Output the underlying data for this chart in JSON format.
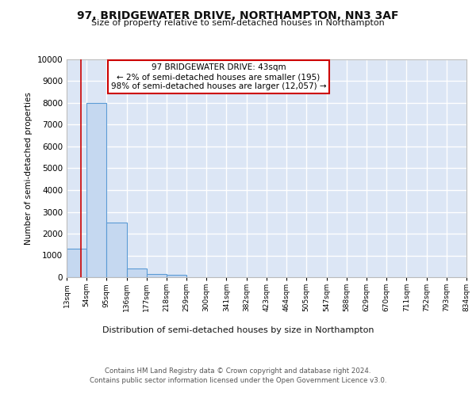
{
  "title": "97, BRIDGEWATER DRIVE, NORTHAMPTON, NN3 3AF",
  "subtitle": "Size of property relative to semi-detached houses in Northampton",
  "xlabel": "Distribution of semi-detached houses by size in Northampton",
  "ylabel": "Number of semi-detached properties",
  "bin_edges": [
    13,
    54,
    95,
    136,
    177,
    218,
    259,
    300,
    341,
    382,
    423,
    464,
    505,
    547,
    588,
    629,
    670,
    711,
    752,
    793,
    834
  ],
  "bar_heights": [
    1300,
    8000,
    2500,
    400,
    150,
    100,
    0,
    0,
    0,
    0,
    0,
    0,
    0,
    0,
    0,
    0,
    0,
    0,
    0,
    0
  ],
  "bar_color": "#c5d8f0",
  "bar_edge_color": "#5b9bd5",
  "background_color": "#dce6f5",
  "grid_color": "#ffffff",
  "annotation_box_color": "#ffffff",
  "annotation_border_color": "#cc0000",
  "property_line_color": "#cc0000",
  "property_size": 43,
  "annotation_title": "97 BRIDGEWATER DRIVE: 43sqm",
  "annotation_line1": "← 2% of semi-detached houses are smaller (195)",
  "annotation_line2": "98% of semi-detached houses are larger (12,057) →",
  "ylim": [
    0,
    10000
  ],
  "yticks": [
    0,
    1000,
    2000,
    3000,
    4000,
    5000,
    6000,
    7000,
    8000,
    9000,
    10000
  ],
  "fig_bg": "#ffffff",
  "footer_line1": "Contains HM Land Registry data © Crown copyright and database right 2024.",
  "footer_line2": "Contains public sector information licensed under the Open Government Licence v3.0."
}
